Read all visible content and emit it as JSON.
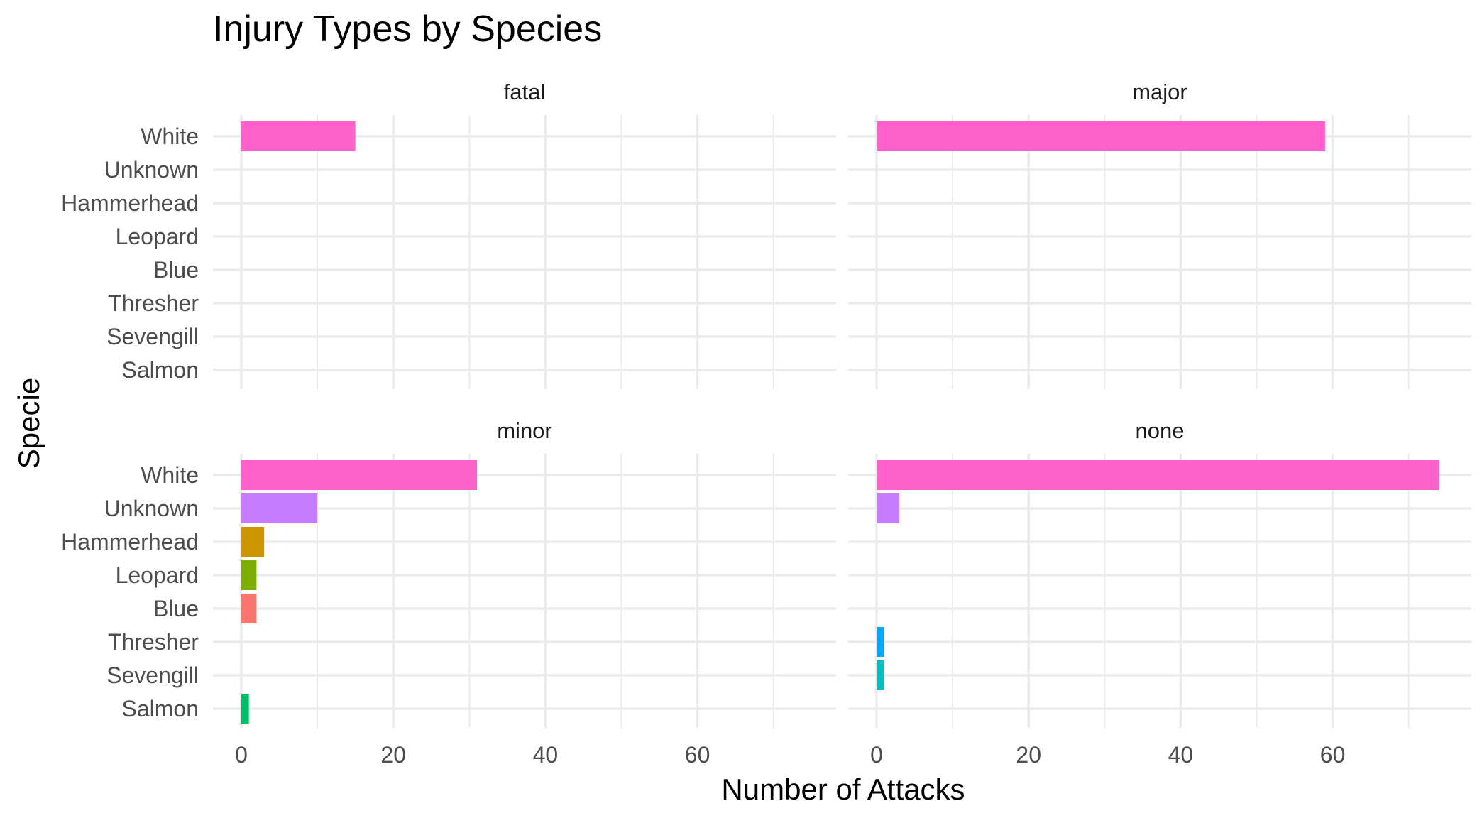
{
  "chart_data": {
    "type": "bar",
    "orientation": "horizontal",
    "title": "Injury Types by Species",
    "xlabel": "Number of Attacks",
    "ylabel": "Specie",
    "categories": [
      "White",
      "Unknown",
      "Hammerhead",
      "Leopard",
      "Blue",
      "Thresher",
      "Sevengill",
      "Salmon"
    ],
    "colors": {
      "White": "#FF61CC",
      "Unknown": "#C77CFF",
      "Hammerhead": "#CD9600",
      "Leopard": "#7CAE00",
      "Blue": "#F8766D",
      "Thresher": "#00A9FF",
      "Sevengill": "#00BFC4",
      "Salmon": "#00BE67"
    },
    "xlim": [
      0,
      74
    ],
    "xticks": [
      0,
      20,
      40,
      60
    ],
    "grid": true,
    "legend": "none",
    "panels": [
      {
        "label": "fatal",
        "values": [
          15,
          0,
          0,
          0,
          0,
          0,
          0,
          0
        ]
      },
      {
        "label": "major",
        "values": [
          59,
          0,
          0,
          0,
          0,
          0,
          0,
          0
        ]
      },
      {
        "label": "minor",
        "values": [
          31,
          10,
          3,
          2,
          2,
          0,
          0,
          1
        ]
      },
      {
        "label": "none",
        "values": [
          74,
          3,
          0,
          0,
          0,
          1,
          1,
          0
        ]
      }
    ]
  }
}
